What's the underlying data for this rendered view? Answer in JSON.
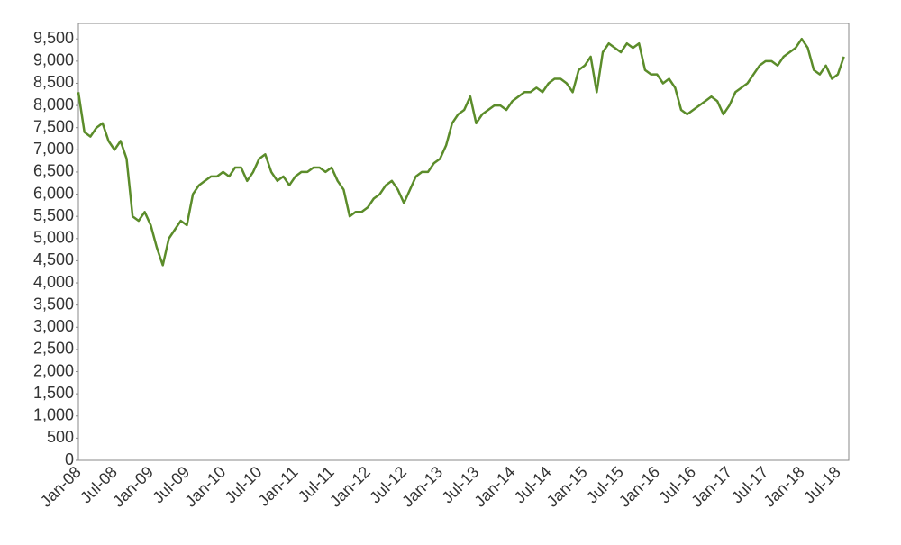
{
  "chart_data": {
    "type": "line",
    "categories": [
      "Jan-08",
      null,
      null,
      null,
      null,
      null,
      "Jul-08",
      null,
      null,
      null,
      null,
      null,
      "Jan-09",
      null,
      null,
      null,
      null,
      null,
      "Jul-09",
      null,
      null,
      null,
      null,
      null,
      "Jan-10",
      null,
      null,
      null,
      null,
      null,
      "Jul-10",
      null,
      null,
      null,
      null,
      null,
      "Jan-11",
      null,
      null,
      null,
      null,
      null,
      "Jul-11",
      null,
      null,
      null,
      null,
      null,
      "Jan-12",
      null,
      null,
      null,
      null,
      null,
      "Jul-12",
      null,
      null,
      null,
      null,
      null,
      "Jan-13",
      null,
      null,
      null,
      null,
      null,
      "Jul-13",
      null,
      null,
      null,
      null,
      null,
      "Jan-14",
      null,
      null,
      null,
      null,
      null,
      "Jul-14",
      null,
      null,
      null,
      null,
      null,
      "Jan-15",
      null,
      null,
      null,
      null,
      null,
      "Jul-15",
      null,
      null,
      null,
      null,
      null,
      "Jan-16",
      null,
      null,
      null,
      null,
      null,
      "Jul-16",
      null,
      null,
      null,
      null,
      null,
      "Jan-17",
      null,
      null,
      null,
      null,
      null,
      "Jul-17",
      null,
      null,
      null,
      null,
      null,
      "Jan-18",
      null,
      null,
      null,
      null,
      null,
      "Jul-18",
      null
    ],
    "values": [
      8300,
      7400,
      7300,
      7500,
      7600,
      7200,
      7000,
      7200,
      6800,
      5500,
      5400,
      5600,
      5300,
      4800,
      4400,
      5000,
      5200,
      5400,
      5300,
      6000,
      6200,
      6300,
      6400,
      6400,
      6500,
      6400,
      6600,
      6600,
      6300,
      6500,
      6800,
      6900,
      6500,
      6300,
      6400,
      6200,
      6400,
      6500,
      6500,
      6600,
      6600,
      6500,
      6600,
      6300,
      6100,
      5500,
      5600,
      5600,
      5700,
      5900,
      6000,
      6200,
      6300,
      6100,
      5800,
      6100,
      6400,
      6500,
      6500,
      6700,
      6800,
      7100,
      7600,
      7800,
      7900,
      8200,
      7600,
      7800,
      7900,
      8000,
      8000,
      7900,
      8100,
      8200,
      8300,
      8300,
      8400,
      8300,
      8500,
      8600,
      8600,
      8500,
      8300,
      8800,
      8900,
      9100,
      8300,
      9200,
      9400,
      9300,
      9200,
      9400,
      9300,
      9400,
      8800,
      8700,
      8700,
      8500,
      8600,
      8400,
      7900,
      7800,
      7900,
      8000,
      8100,
      8200,
      8100,
      7800,
      8000,
      8300,
      8400,
      8500,
      8700,
      8900,
      9000,
      9000,
      8900,
      9100,
      9200,
      9300,
      9500,
      9300,
      8800,
      8700,
      8900,
      8600,
      8700,
      9100
    ],
    "color": "#5b8c2a",
    "ylim": [
      0,
      9850
    ],
    "yticks": [
      0,
      500,
      {
        "value": 1000,
        "label": "1,000"
      },
      {
        "value": 1500,
        "label": "1,500"
      },
      {
        "value": 2000,
        "label": "2,000"
      },
      {
        "value": 2500,
        "label": "2,500"
      },
      {
        "value": 3000,
        "label": "3,000"
      },
      {
        "value": 3500,
        "label": "3,500"
      },
      {
        "value": 4000,
        "label": "4,000"
      },
      {
        "value": 4500,
        "label": "4,500"
      },
      {
        "value": 5000,
        "label": "5,000"
      },
      {
        "value": 5500,
        "label": "5,500"
      },
      {
        "value": 6000,
        "label": "6,000"
      },
      {
        "value": 6500,
        "label": "6,500"
      },
      {
        "value": 7000,
        "label": "7,000"
      },
      {
        "value": 7500,
        "label": "7,500"
      },
      {
        "value": 8000,
        "label": "8,000"
      },
      {
        "value": 8500,
        "label": "8,500"
      },
      {
        "value": 9000,
        "label": "9,000"
      },
      {
        "value": 9500,
        "label": "9,500"
      }
    ],
    "grid": false
  }
}
